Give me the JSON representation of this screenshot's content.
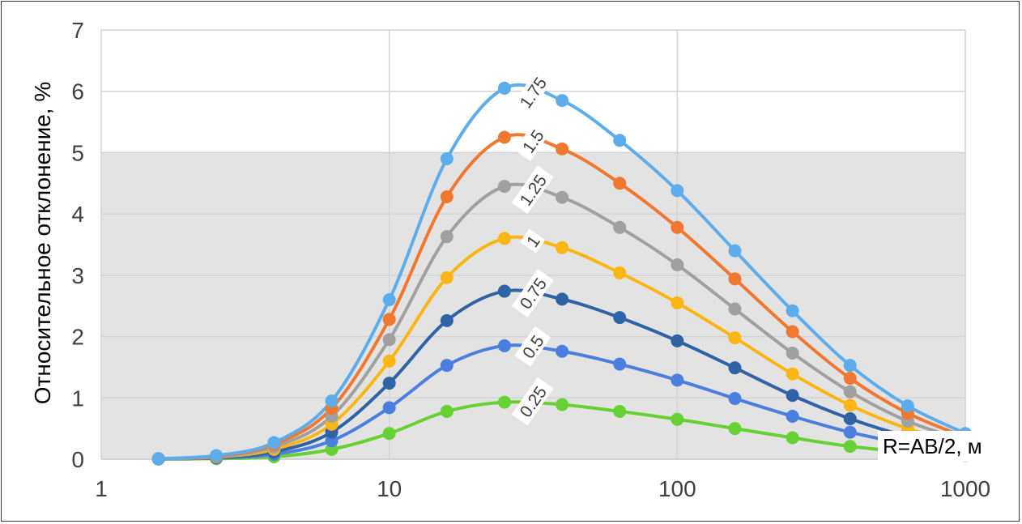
{
  "chart_data": {
    "type": "line",
    "x_scale": "log",
    "xlim": [
      1,
      1000
    ],
    "ylim": [
      0,
      7
    ],
    "shaded_band": [
      0,
      5
    ],
    "xlabel": "R=AB/2, м",
    "ylabel": "Относительное отклонение, %",
    "x_ticks": [
      "1",
      "10",
      "100",
      "1000"
    ],
    "y_ticks": [
      "0",
      "1",
      "2",
      "3",
      "4",
      "5",
      "6",
      "7"
    ],
    "x": [
      1.58,
      2.51,
      3.98,
      6.31,
      10,
      15.85,
      25.12,
      39.81,
      63.1,
      100,
      158.5,
      251.2,
      398.1,
      631,
      1000
    ],
    "series": [
      {
        "name": "1.75",
        "color": "#5dadec",
        "values": [
          0.01,
          0.06,
          0.27,
          0.95,
          2.6,
          4.9,
          6.05,
          5.85,
          5.2,
          4.38,
          3.4,
          2.42,
          1.53,
          0.87,
          0.42
        ]
      },
      {
        "name": "1.5",
        "color": "#f07830",
        "values": [
          0.01,
          0.05,
          0.24,
          0.83,
          2.28,
          4.28,
          5.25,
          5.06,
          4.5,
          3.78,
          2.94,
          2.08,
          1.32,
          0.75,
          0.36
        ]
      },
      {
        "name": "1.25",
        "color": "#a0a0a0",
        "values": [
          0.01,
          0.04,
          0.2,
          0.7,
          1.95,
          3.63,
          4.45,
          4.27,
          3.78,
          3.17,
          2.45,
          1.73,
          1.1,
          0.62,
          0.3
        ]
      },
      {
        "name": "1",
        "color": "#fbb614",
        "values": [
          0.01,
          0.035,
          0.16,
          0.57,
          1.6,
          2.96,
          3.6,
          3.45,
          3.04,
          2.55,
          1.98,
          1.39,
          0.88,
          0.5,
          0.24
        ]
      },
      {
        "name": "0.75",
        "color": "#2e63a6",
        "values": [
          0.005,
          0.025,
          0.12,
          0.44,
          1.24,
          2.26,
          2.74,
          2.61,
          2.31,
          1.93,
          1.49,
          1.04,
          0.66,
          0.37,
          0.18
        ]
      },
      {
        "name": "0.5",
        "color": "#4a7fe0",
        "values": [
          0.005,
          0.02,
          0.08,
          0.3,
          0.84,
          1.53,
          1.85,
          1.76,
          1.55,
          1.29,
          0.99,
          0.7,
          0.44,
          0.25,
          0.12
        ]
      },
      {
        "name": "0.25",
        "color": "#66d132",
        "values": [
          0.003,
          0.01,
          0.04,
          0.16,
          0.42,
          0.78,
          0.93,
          0.89,
          0.78,
          0.65,
          0.5,
          0.35,
          0.21,
          0.12,
          0.06
        ]
      }
    ]
  }
}
